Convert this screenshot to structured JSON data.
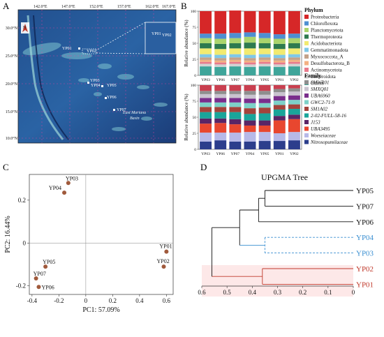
{
  "panel_letters": {
    "a": "A",
    "b": "B",
    "c": "C",
    "d": "D"
  },
  "map": {
    "lon_ticks": [
      "142.0°E",
      "147.0°E",
      "152.0°E",
      "157.0°E",
      "162.0°E",
      "167.0°E"
    ],
    "lat_ticks": [
      "30.0°N",
      "25.0°N",
      "20.0°N",
      "15.0°N",
      "10.0°N"
    ],
    "north_label": "N",
    "basin_label_1": "East Mariana",
    "basin_label_2": "Basin",
    "stations": [
      "YP01",
      "YP02",
      "YP03",
      "YP04",
      "YP05",
      "YP06",
      "YP07"
    ],
    "colors": {
      "deep": "#1b3c78",
      "mid": "#2c6ea8",
      "shallow": "#7ec4cf",
      "land": "#c9d6a8"
    }
  },
  "chart_data": [
    {
      "type": "bar",
      "stacked": true,
      "title": "Phylum",
      "ylabel": "Relative abundance (%)",
      "ylim": [
        0,
        100
      ],
      "categories": [
        "YP03",
        "YP06",
        "YP07",
        "YP04",
        "YP05",
        "YP01",
        "YP02"
      ],
      "series": [
        {
          "name": "Others",
          "color": "#3fa59a",
          "values": [
            14,
            13,
            14,
            13,
            14,
            13,
            14
          ]
        },
        {
          "name": "Bacteroidota",
          "color": "#d2d2d2",
          "values": [
            4,
            4,
            4,
            4,
            4,
            4,
            4
          ]
        },
        {
          "name": "Actinomycetota",
          "color": "#e87a8c",
          "values": [
            3,
            3,
            3,
            3,
            3,
            3,
            3
          ]
        },
        {
          "name": "Desulfobacterota_B",
          "color": "#f4b183",
          "values": [
            3,
            3,
            3,
            3,
            3,
            3,
            3
          ]
        },
        {
          "name": "Myxococcota_A",
          "color": "#c3a28a",
          "values": [
            4,
            4,
            4,
            4,
            4,
            4,
            4
          ]
        },
        {
          "name": "Gemmatimonadota",
          "color": "#7fc8e8",
          "values": [
            5,
            5,
            5,
            5,
            5,
            5,
            5
          ]
        },
        {
          "name": "Acidobacteriota",
          "color": "#f2ea70",
          "values": [
            9,
            9,
            9,
            10,
            9,
            9,
            9
          ]
        },
        {
          "name": "Thermoproteota",
          "color": "#2e7a4f",
          "values": [
            8,
            8,
            8,
            9,
            8,
            8,
            8
          ]
        },
        {
          "name": "Planctomycetota",
          "color": "#aad46c",
          "values": [
            8,
            8,
            8,
            9,
            8,
            8,
            8
          ]
        },
        {
          "name": "Chloroflexota",
          "color": "#4e8fd1",
          "values": [
            7,
            8,
            8,
            7,
            8,
            7,
            7
          ]
        },
        {
          "name": "Proteobacteria",
          "color": "#d62728",
          "values": [
            35,
            35,
            35,
            33,
            34,
            36,
            35
          ]
        }
      ]
    },
    {
      "type": "bar",
      "stacked": true,
      "title": "Family",
      "ylabel": "Relative abundance (%)",
      "ylim": [
        0,
        100
      ],
      "categories": [
        "YP03",
        "YP06",
        "YP07",
        "YP04",
        "YP05",
        "YP01",
        "YP02"
      ],
      "series": [
        {
          "name": "Nitrosopumilaceae",
          "color": "#2c3e8c",
          "values": [
            12,
            14,
            12,
            12,
            13,
            13,
            14
          ]
        },
        {
          "name": "Woeseiaceae",
          "color": "#b7b9e8",
          "values": [
            14,
            12,
            14,
            15,
            14,
            12,
            13
          ]
        },
        {
          "name": "UBA3495",
          "color": "#e8472f",
          "values": [
            14,
            15,
            13,
            10,
            10,
            20,
            20
          ]
        },
        {
          "name": "J153",
          "color": "#5a2566",
          "values": [
            8,
            7,
            8,
            8,
            8,
            7,
            7
          ]
        },
        {
          "name": "2-02-FULL-58-16",
          "color": "#1aa59a",
          "values": [
            10,
            10,
            11,
            10,
            11,
            10,
            9
          ]
        },
        {
          "name": "SM1A02",
          "color": "#a4433b",
          "values": [
            8,
            8,
            8,
            9,
            9,
            7,
            7
          ]
        },
        {
          "name": "GWC2-71-9",
          "color": "#7dd1c8",
          "values": [
            7,
            7,
            7,
            8,
            7,
            7,
            7
          ]
        },
        {
          "name": "UBA6960",
          "color": "#7a2e8c",
          "values": [
            7,
            7,
            7,
            7,
            7,
            7,
            7
          ]
        },
        {
          "name": "SMXQ01",
          "color": "#c9c3cf",
          "values": [
            6,
            6,
            6,
            6,
            6,
            6,
            6
          ]
        },
        {
          "name": "SMWR01",
          "color": "#8e8e8e",
          "values": [
            5,
            5,
            5,
            6,
            6,
            5,
            5
          ]
        },
        {
          "name": "",
          "color": "#c93f4f",
          "values": [
            9,
            9,
            9,
            9,
            9,
            6,
            5
          ]
        }
      ]
    },
    {
      "type": "scatter",
      "xlabel": "PC1: 57.09%",
      "ylabel": "PC2: 16.44%",
      "xlim": [
        -0.42,
        0.65
      ],
      "ylim": [
        -0.24,
        0.32
      ],
      "x_ticks": [
        -0.4,
        -0.2,
        0,
        0.2,
        0.4,
        0.6
      ],
      "y_ticks": [
        -0.2,
        0,
        0.2
      ],
      "x_tick_labels": [
        "-0.4",
        "-0.2",
        "0",
        "0.2",
        "0.4",
        "0.6"
      ],
      "y_tick_labels": [
        "-0.2",
        "0",
        "0.2"
      ],
      "point_color": "#a05a3c",
      "points": [
        {
          "label": "YP03",
          "x": -0.13,
          "y": 0.28
        },
        {
          "label": "YP04",
          "x": -0.16,
          "y": 0.235
        },
        {
          "label": "YP05",
          "x": -0.3,
          "y": -0.11
        },
        {
          "label": "YP07",
          "x": -0.37,
          "y": -0.165
        },
        {
          "label": "YP06",
          "x": -0.35,
          "y": -0.205
        },
        {
          "label": "YP01",
          "x": 0.6,
          "y": -0.04
        },
        {
          "label": "YP02",
          "x": 0.58,
          "y": -0.11
        }
      ]
    },
    {
      "type": "dendrogram",
      "title": "UPGMA Tree",
      "xlim": [
        0.6,
        0
      ],
      "x_ticks": [
        0.6,
        0.5,
        0.4,
        0.3,
        0.2,
        0.1,
        0
      ],
      "x_tick_labels": [
        "0.6",
        "0.5",
        "0.4",
        "0.3",
        "0.2",
        "0.1",
        "0"
      ],
      "leaves": [
        {
          "label": "YP05",
          "color": "#111111"
        },
        {
          "label": "YP07",
          "color": "#111111"
        },
        {
          "label": "YP06",
          "color": "#111111"
        },
        {
          "label": "YP04",
          "color": "#3a8fd1"
        },
        {
          "label": "YP03",
          "color": "#3a8fd1"
        },
        {
          "label": "YP02",
          "color": "#c0392b"
        },
        {
          "label": "YP01",
          "color": "#c0392b"
        }
      ],
      "merges": [
        {
          "a": "YP05",
          "b": "YP07",
          "height": 0.35,
          "color": "#111111"
        },
        {
          "a": "YP05+YP07",
          "b": "YP06",
          "height": 0.375,
          "color": "#111111"
        },
        {
          "a": "YP04",
          "b": "YP03",
          "height": 0.35,
          "color": "#3a8fd1"
        },
        {
          "a": "YP05+YP07+YP06",
          "b": "YP04+YP03",
          "height": 0.45,
          "color": "#111111"
        },
        {
          "a": "YP02",
          "b": "YP01",
          "height": 0.36,
          "color": "#c0392b"
        },
        {
          "a": "all-black-blue",
          "b": "YP02+YP01",
          "height": 0.56,
          "color": "#111111"
        }
      ]
    }
  ]
}
